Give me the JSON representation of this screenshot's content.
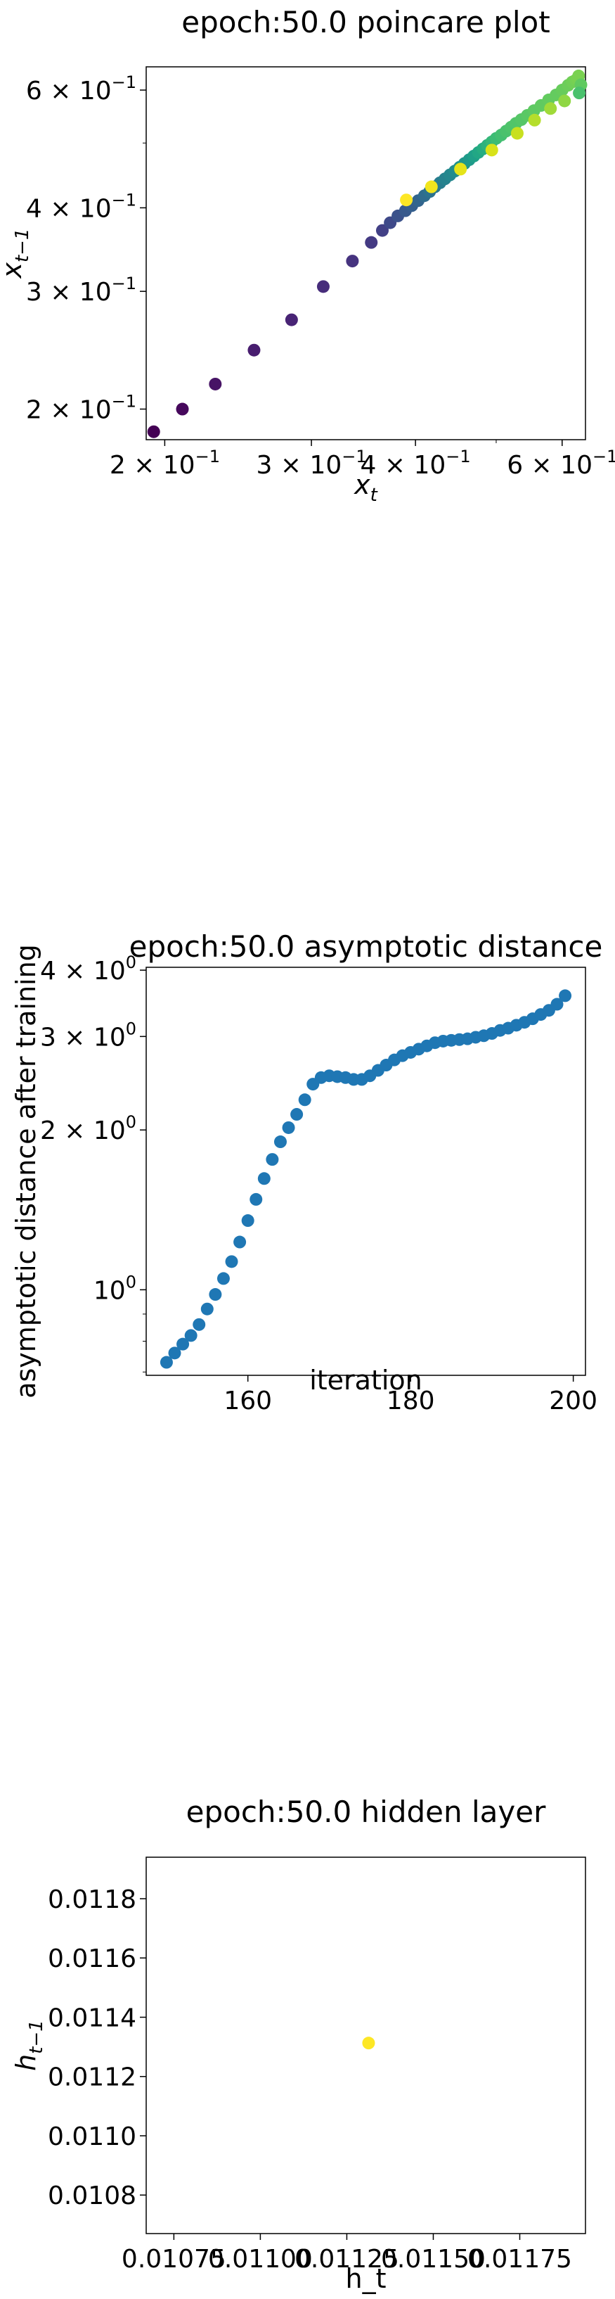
{
  "colors": {
    "viridis_dark": "#440154",
    "viridis_mid": "#21918c",
    "viridis_green": "#5ec962",
    "viridis_yellow": "#fde725",
    "series_blue": "#1f77b4"
  },
  "chart_data": [
    {
      "type": "scatter",
      "title": "epoch:50.0 poincare plot",
      "xlabel": "x_t",
      "ylabel": "x_{t-1}",
      "xscale": "log",
      "yscale": "log",
      "xlim": [
        0.19,
        0.64
      ],
      "ylim": [
        0.18,
        0.65
      ],
      "xticks": [
        {
          "v": 0.2,
          "m": "2",
          "e": "−1"
        },
        {
          "v": 0.3,
          "m": "3",
          "e": "−1"
        },
        {
          "v": 0.4,
          "m": "4",
          "e": "−1"
        },
        {
          "v": 0.6,
          "m": "6",
          "e": "−1"
        }
      ],
      "yticks": [
        {
          "v": 0.2,
          "m": "2",
          "e": "−1"
        },
        {
          "v": 0.3,
          "m": "3",
          "e": "−1"
        },
        {
          "v": 0.4,
          "m": "4",
          "e": "−1"
        },
        {
          "v": 0.6,
          "m": "6",
          "e": "−1"
        }
      ],
      "points": [
        {
          "x": 0.194,
          "y": 0.185,
          "c": "#440154"
        },
        {
          "x": 0.21,
          "y": 0.2,
          "c": "#46085c"
        },
        {
          "x": 0.23,
          "y": 0.218,
          "c": "#471365"
        },
        {
          "x": 0.256,
          "y": 0.245,
          "c": "#481d6f"
        },
        {
          "x": 0.284,
          "y": 0.272,
          "c": "#482475"
        },
        {
          "x": 0.31,
          "y": 0.305,
          "c": "#472d7b"
        },
        {
          "x": 0.336,
          "y": 0.333,
          "c": "#46337f"
        },
        {
          "x": 0.354,
          "y": 0.355,
          "c": "#443a83"
        },
        {
          "x": 0.365,
          "y": 0.37,
          "c": "#424086"
        },
        {
          "x": 0.373,
          "y": 0.38,
          "c": "#3e4989"
        },
        {
          "x": 0.381,
          "y": 0.389,
          "c": "#3b528b"
        },
        {
          "x": 0.389,
          "y": 0.396,
          "c": "#38598c"
        },
        {
          "x": 0.396,
          "y": 0.403,
          "c": "#355f8d"
        },
        {
          "x": 0.403,
          "y": 0.41,
          "c": "#32658e"
        },
        {
          "x": 0.41,
          "y": 0.417,
          "c": "#2f6c8e"
        },
        {
          "x": 0.416,
          "y": 0.423,
          "c": "#2c728e"
        },
        {
          "x": 0.422,
          "y": 0.43,
          "c": "#2a788e"
        },
        {
          "x": 0.428,
          "y": 0.436,
          "c": "#287d8e"
        },
        {
          "x": 0.434,
          "y": 0.442,
          "c": "#26828e"
        },
        {
          "x": 0.44,
          "y": 0.448,
          "c": "#24878e"
        },
        {
          "x": 0.446,
          "y": 0.454,
          "c": "#228c8d"
        },
        {
          "x": 0.452,
          "y": 0.46,
          "c": "#21918c"
        },
        {
          "x": 0.458,
          "y": 0.466,
          "c": "#1f968b"
        },
        {
          "x": 0.464,
          "y": 0.472,
          "c": "#1f9a8a"
        },
        {
          "x": 0.47,
          "y": 0.478,
          "c": "#1fa088"
        },
        {
          "x": 0.476,
          "y": 0.484,
          "c": "#22a785"
        },
        {
          "x": 0.482,
          "y": 0.49,
          "c": "#26ad81"
        },
        {
          "x": 0.488,
          "y": 0.496,
          "c": "#2db27d"
        },
        {
          "x": 0.494,
          "y": 0.502,
          "c": "#35b779"
        },
        {
          "x": 0.5,
          "y": 0.508,
          "c": "#3dbc74"
        },
        {
          "x": 0.507,
          "y": 0.514,
          "c": "#44bf70"
        },
        {
          "x": 0.514,
          "y": 0.521,
          "c": "#4ac16d"
        },
        {
          "x": 0.521,
          "y": 0.528,
          "c": "#4ec36b"
        },
        {
          "x": 0.528,
          "y": 0.535,
          "c": "#52c569"
        },
        {
          "x": 0.536,
          "y": 0.542,
          "c": "#56c667"
        },
        {
          "x": 0.545,
          "y": 0.55,
          "c": "#5ac864"
        },
        {
          "x": 0.555,
          "y": 0.559,
          "c": "#5ec962"
        },
        {
          "x": 0.566,
          "y": 0.569,
          "c": "#60ca60"
        },
        {
          "x": 0.578,
          "y": 0.58,
          "c": "#62cb5f"
        },
        {
          "x": 0.59,
          "y": 0.59,
          "c": "#64cb5f"
        },
        {
          "x": 0.6,
          "y": 0.6,
          "c": "#67cc5c"
        },
        {
          "x": 0.61,
          "y": 0.61,
          "c": "#6ccd5a"
        },
        {
          "x": 0.617,
          "y": 0.617,
          "c": "#70cf57"
        },
        {
          "x": 0.623,
          "y": 0.621,
          "c": "#74d055"
        },
        {
          "x": 0.626,
          "y": 0.624,
          "c": "#78d152"
        },
        {
          "x": 0.628,
          "y": 0.63,
          "c": "#7ad151"
        },
        {
          "x": 0.632,
          "y": 0.611,
          "c": "#60ca60"
        },
        {
          "x": 0.629,
          "y": 0.594,
          "c": "#4ac16d"
        },
        {
          "x": 0.604,
          "y": 0.578,
          "c": "#8fd744"
        },
        {
          "x": 0.581,
          "y": 0.563,
          "c": "#a0da39"
        },
        {
          "x": 0.556,
          "y": 0.541,
          "c": "#b5de2b"
        },
        {
          "x": 0.53,
          "y": 0.517,
          "c": "#c8e020"
        },
        {
          "x": 0.494,
          "y": 0.488,
          "c": "#d8e219"
        },
        {
          "x": 0.453,
          "y": 0.457,
          "c": "#e5e419"
        },
        {
          "x": 0.418,
          "y": 0.43,
          "c": "#f1e51d"
        },
        {
          "x": 0.39,
          "y": 0.411,
          "c": "#fde725"
        }
      ]
    },
    {
      "type": "scatter",
      "title": "epoch:50.0 asymptotic distance",
      "xlabel": "iteration",
      "ylabel": "asymptotic distance after training",
      "yscale": "log",
      "xlim": [
        147.5,
        201.5
      ],
      "ylim": [
        0.69,
        4.05
      ],
      "xticks": [
        {
          "v": 160,
          "t": "160"
        },
        {
          "v": 180,
          "t": "180"
        },
        {
          "v": 200,
          "t": "200"
        }
      ],
      "yticks": [
        {
          "v": 1,
          "m": "10",
          "e": "0"
        },
        {
          "v": 2,
          "m": "2 × 10",
          "e": "0"
        },
        {
          "v": 3,
          "m": "3 × 10",
          "e": "0"
        },
        {
          "v": 4,
          "m": "4 × 10",
          "e": "0"
        }
      ],
      "x": [
        150,
        151,
        152,
        153,
        154,
        155,
        156,
        157,
        158,
        159,
        160,
        161,
        162,
        163,
        164,
        165,
        166,
        167,
        168,
        169,
        170,
        171,
        172,
        173,
        174,
        175,
        176,
        177,
        178,
        179,
        180,
        181,
        182,
        183,
        184,
        185,
        186,
        187,
        188,
        189,
        190,
        191,
        192,
        193,
        194,
        195,
        196,
        197,
        198,
        199
      ],
      "y": [
        0.73,
        0.76,
        0.79,
        0.82,
        0.86,
        0.92,
        0.98,
        1.05,
        1.13,
        1.23,
        1.35,
        1.48,
        1.62,
        1.76,
        1.9,
        2.02,
        2.14,
        2.28,
        2.44,
        2.51,
        2.53,
        2.52,
        2.51,
        2.49,
        2.49,
        2.53,
        2.59,
        2.65,
        2.71,
        2.76,
        2.8,
        2.84,
        2.88,
        2.92,
        2.94,
        2.95,
        2.96,
        2.97,
        2.99,
        3.01,
        3.04,
        3.08,
        3.11,
        3.15,
        3.19,
        3.24,
        3.3,
        3.36,
        3.45,
        3.58
      ]
    },
    {
      "type": "scatter",
      "title": "epoch:50.0 hidden layer",
      "xlabel": "h_t",
      "ylabel": "h_{t-1}",
      "xlim": [
        0.01067,
        0.01194
      ],
      "ylim": [
        0.01067,
        0.01194
      ],
      "xticks": [
        {
          "v": 0.01075,
          "t": "0.01075"
        },
        {
          "v": 0.011,
          "t": "0.01100"
        },
        {
          "v": 0.01125,
          "t": "0.01125"
        },
        {
          "v": 0.0115,
          "t": "0.01150"
        },
        {
          "v": 0.01175,
          "t": "0.01175"
        }
      ],
      "yticks": [
        {
          "v": 0.0108,
          "t": "0.0108"
        },
        {
          "v": 0.011,
          "t": "0.0110"
        },
        {
          "v": 0.0112,
          "t": "0.0112"
        },
        {
          "v": 0.0114,
          "t": "0.0114"
        },
        {
          "v": 0.0116,
          "t": "0.0116"
        },
        {
          "v": 0.0118,
          "t": "0.0118"
        }
      ],
      "points": [
        {
          "x": 0.011313,
          "y": 0.011313,
          "c": "#fde725"
        }
      ]
    }
  ]
}
